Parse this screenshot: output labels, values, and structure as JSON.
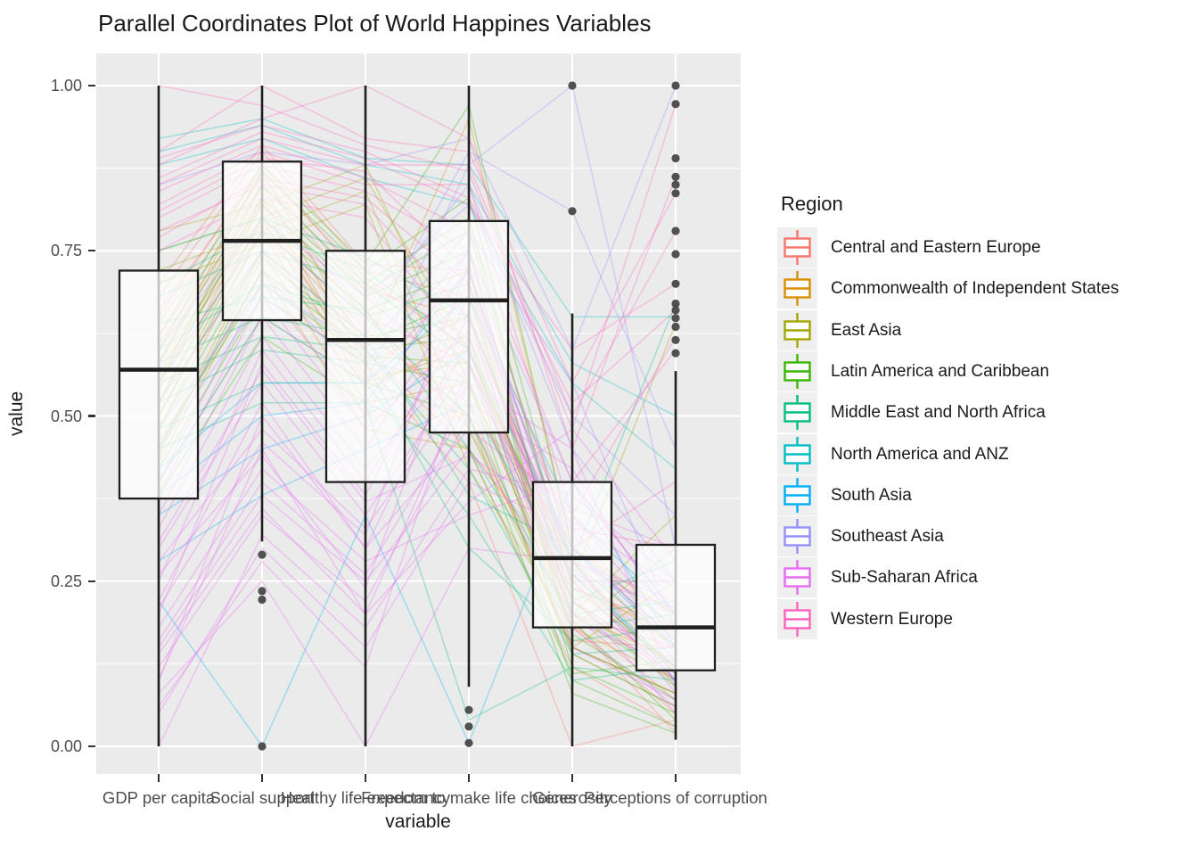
{
  "title": "Parallel Coordinates Plot of World Happines Variables",
  "colors": {
    "panel_bg": "#EBEBEB",
    "grid": "#FFFFFF",
    "box_stroke": "#1f1f1f",
    "box_fill": "rgba(255,255,255,0.72)",
    "outlier": "#3f3f3f",
    "axis_text": "#4D4D4D",
    "legend_key_bg": "#EFEFEF"
  },
  "chart_data": {
    "type": "parallel-coordinates+boxplot",
    "title": "Parallel Coordinates Plot of World Happines Variables",
    "xlabel": "variable",
    "ylabel": "value",
    "ylim": [
      0,
      1
    ],
    "y_ticks": [
      "0.00",
      "0.25",
      "0.50",
      "0.75",
      "1.00"
    ],
    "y_tick_values": [
      0,
      0.25,
      0.5,
      0.75,
      1.0
    ],
    "y_minor_gridlines": [
      0.125,
      0.375,
      0.625,
      0.875
    ],
    "grid": "on",
    "categories": [
      "GDP per capita",
      "Social support",
      "Healthy life expectancy",
      "Freedom to make life choices",
      "Generosity",
      "Perceptions of corruption"
    ],
    "boxplots": [
      {
        "category": "GDP per capita",
        "whisker_low": 0.0,
        "q1": 0.375,
        "median": 0.57,
        "q3": 0.72,
        "whisker_high": 1.0,
        "outliers": []
      },
      {
        "category": "Social support",
        "whisker_low": 0.31,
        "q1": 0.645,
        "median": 0.765,
        "q3": 0.885,
        "whisker_high": 1.0,
        "outliers": [
          0.29,
          0.235,
          0.222,
          0.0
        ]
      },
      {
        "category": "Healthy life expectancy",
        "whisker_low": 0.0,
        "q1": 0.4,
        "median": 0.615,
        "q3": 0.75,
        "whisker_high": 1.0,
        "outliers": []
      },
      {
        "category": "Freedom to make life choices",
        "whisker_low": 0.09,
        "q1": 0.475,
        "median": 0.675,
        "q3": 0.795,
        "whisker_high": 1.0,
        "outliers": [
          0.055,
          0.03,
          0.005
        ]
      },
      {
        "category": "Generosity",
        "whisker_low": 0.0,
        "q1": 0.18,
        "median": 0.285,
        "q3": 0.4,
        "whisker_high": 0.655,
        "outliers": [
          0.81,
          1.0
        ]
      },
      {
        "category": "Perceptions of corruption",
        "whisker_low": 0.01,
        "q1": 0.115,
        "median": 0.18,
        "q3": 0.305,
        "whisker_high": 0.568,
        "outliers": [
          1.0,
          0.972,
          0.89,
          0.862,
          0.85,
          0.837,
          0.78,
          0.745,
          0.7,
          0.67,
          0.66,
          0.648,
          0.635,
          0.615,
          0.595
        ]
      }
    ],
    "legend": {
      "title": "Region",
      "position": "right",
      "entries": [
        {
          "label": "Central and Eastern Europe",
          "color": "#F8766D"
        },
        {
          "label": "Commonwealth of Independent States",
          "color": "#D89000"
        },
        {
          "label": "East Asia",
          "color": "#A3A500"
        },
        {
          "label": "Latin America and Caribbean",
          "color": "#39B600"
        },
        {
          "label": "Middle East and North Africa",
          "color": "#00BF7D"
        },
        {
          "label": "North America and ANZ",
          "color": "#00BFC4"
        },
        {
          "label": "South Asia",
          "color": "#00B0F6"
        },
        {
          "label": "Southeast Asia",
          "color": "#9590FF"
        },
        {
          "label": "Sub-Saharan Africa",
          "color": "#E76BF3"
        },
        {
          "label": "Western Europe",
          "color": "#FF62BC"
        }
      ]
    },
    "series": [
      {
        "name": "Central and Eastern Europe",
        "color": "#F8766D",
        "lines": [
          [
            0.62,
            0.85,
            0.68,
            0.55,
            0.18,
            0.05
          ],
          [
            0.58,
            0.8,
            0.63,
            0.5,
            0.15,
            0.08
          ],
          [
            0.65,
            0.88,
            0.7,
            0.62,
            0.22,
            0.1
          ],
          [
            0.55,
            0.78,
            0.6,
            0.45,
            0.12,
            0.03
          ],
          [
            0.68,
            0.9,
            0.72,
            0.68,
            0.25,
            0.12
          ],
          [
            0.6,
            0.82,
            0.65,
            0.58,
            0.2,
            0.07
          ],
          [
            0.7,
            0.91,
            0.73,
            0.72,
            0.16,
            0.15
          ],
          [
            0.52,
            0.75,
            0.58,
            0.4,
            0.0,
            0.04
          ],
          [
            0.64,
            0.86,
            0.69,
            0.65,
            0.28,
            0.09
          ],
          [
            0.57,
            0.79,
            0.62,
            0.52,
            0.14,
            0.06
          ],
          [
            0.66,
            0.87,
            0.71,
            0.6,
            0.24,
            0.18
          ],
          [
            0.61,
            0.83,
            0.66,
            0.48,
            0.19,
            0.02
          ]
        ]
      },
      {
        "name": "Commonwealth of Independent States",
        "color": "#D89000",
        "lines": [
          [
            0.52,
            0.82,
            0.55,
            0.6,
            0.22,
            0.12
          ],
          [
            0.48,
            0.78,
            0.52,
            0.55,
            0.18,
            0.1
          ],
          [
            0.55,
            0.85,
            0.58,
            0.65,
            0.26,
            0.15
          ],
          [
            0.45,
            0.75,
            0.5,
            0.5,
            0.15,
            0.08
          ],
          [
            0.58,
            0.87,
            0.6,
            0.95,
            0.3,
            0.2
          ],
          [
            0.5,
            0.8,
            0.54,
            0.62,
            0.2,
            0.13
          ],
          [
            0.43,
            0.72,
            0.48,
            0.45,
            0.24,
            0.17
          ],
          [
            0.54,
            0.83,
            0.56,
            0.58,
            0.28,
            0.11
          ]
        ]
      },
      {
        "name": "East Asia",
        "color": "#A3A500",
        "lines": [
          [
            0.78,
            0.82,
            0.88,
            0.55,
            0.2,
            0.35
          ],
          [
            0.72,
            0.78,
            0.84,
            0.48,
            0.15,
            0.25
          ],
          [
            0.75,
            0.8,
            0.86,
            0.6,
            0.25,
            0.64
          ],
          [
            0.7,
            0.76,
            0.82,
            0.42,
            0.18,
            0.3
          ]
        ]
      },
      {
        "name": "Latin America and Caribbean",
        "color": "#39B600",
        "lines": [
          [
            0.5,
            0.78,
            0.65,
            0.7,
            0.15,
            0.08
          ],
          [
            0.45,
            0.72,
            0.6,
            0.62,
            0.12,
            0.05
          ],
          [
            0.55,
            0.82,
            0.68,
            0.75,
            0.2,
            0.1
          ],
          [
            0.42,
            0.68,
            0.58,
            0.55,
            0.1,
            0.03
          ],
          [
            0.58,
            0.85,
            0.7,
            0.8,
            0.24,
            0.12
          ],
          [
            0.48,
            0.75,
            0.62,
            0.65,
            0.17,
            0.07
          ],
          [
            0.6,
            0.87,
            0.72,
            0.83,
            0.28,
            0.15
          ],
          [
            0.4,
            0.65,
            0.55,
            0.5,
            0.08,
            0.02
          ],
          [
            0.52,
            0.8,
            0.66,
            0.72,
            0.22,
            0.09
          ],
          [
            0.46,
            0.7,
            0.59,
            0.58,
            0.14,
            0.06
          ],
          [
            0.62,
            0.88,
            0.73,
            0.97,
            0.3,
            0.18
          ],
          [
            0.44,
            0.74,
            0.61,
            0.68,
            0.19,
            0.04
          ],
          [
            0.56,
            0.83,
            0.69,
            0.78,
            0.26,
            0.11
          ],
          [
            0.38,
            0.62,
            0.52,
            0.45,
            0.11,
            0.13
          ]
        ]
      },
      {
        "name": "Middle East and North Africa",
        "color": "#00BF7D",
        "lines": [
          [
            0.6,
            0.7,
            0.65,
            0.5,
            0.18,
            0.2
          ],
          [
            0.55,
            0.62,
            0.6,
            0.42,
            0.14,
            0.15
          ],
          [
            0.68,
            0.75,
            0.7,
            0.58,
            0.22,
            0.28
          ],
          [
            0.48,
            0.55,
            0.55,
            0.35,
            0.1,
            0.12
          ],
          [
            0.75,
            0.8,
            0.74,
            0.65,
            0.28,
            0.67
          ],
          [
            0.52,
            0.6,
            0.58,
            0.3,
            0.16,
            0.18
          ],
          [
            0.7,
            0.78,
            0.72,
            0.6,
            0.25,
            0.25
          ],
          [
            0.45,
            0.52,
            0.52,
            0.04,
            0.12,
            0.1
          ],
          [
            0.64,
            0.68,
            0.66,
            0.45,
            0.2,
            0.22
          ],
          [
            0.58,
            0.65,
            0.62,
            0.38,
            0.3,
            0.16
          ]
        ]
      },
      {
        "name": "North America and ANZ",
        "color": "#00BFC4",
        "lines": [
          [
            0.9,
            0.94,
            0.88,
            0.85,
            0.58,
            0.5
          ],
          [
            0.88,
            0.92,
            0.86,
            0.82,
            0.55,
            0.42
          ],
          [
            0.92,
            0.95,
            0.89,
            0.88,
            0.65,
            0.65
          ]
        ]
      },
      {
        "name": "South Asia",
        "color": "#00B0F6",
        "lines": [
          [
            0.35,
            0.45,
            0.5,
            0.6,
            0.3,
            0.15
          ],
          [
            0.28,
            0.38,
            0.45,
            0.52,
            0.26,
            0.12
          ],
          [
            0.42,
            0.55,
            0.55,
            0.68,
            0.35,
            0.2
          ],
          [
            0.22,
            0.0,
            0.35,
            0.005,
            0.4,
            0.15
          ],
          [
            0.38,
            0.5,
            0.52,
            0.72,
            0.28,
            0.1
          ]
        ]
      },
      {
        "name": "Southeast Asia",
        "color": "#9590FF",
        "lines": [
          [
            0.55,
            0.78,
            0.65,
            0.85,
            0.45,
            0.25
          ],
          [
            0.48,
            0.7,
            0.6,
            0.78,
            0.55,
            0.18
          ],
          [
            0.85,
            0.9,
            0.88,
            0.92,
            0.6,
            1.0
          ],
          [
            0.4,
            0.65,
            0.55,
            0.88,
            1.0,
            0.3
          ],
          [
            0.52,
            0.75,
            0.62,
            0.9,
            0.81,
            0.45
          ],
          [
            0.6,
            0.8,
            0.68,
            0.82,
            0.5,
            0.35
          ],
          [
            0.45,
            0.68,
            0.58,
            0.75,
            0.4,
            0.2
          ]
        ]
      },
      {
        "name": "Sub-Saharan Africa",
        "color": "#E76BF3",
        "lines": [
          [
            0.1,
            0.45,
            0.2,
            0.55,
            0.3,
            0.13
          ],
          [
            0.15,
            0.38,
            0.25,
            0.45,
            0.25,
            0.1
          ],
          [
            0.22,
            0.52,
            0.3,
            0.62,
            0.28,
            0.08
          ],
          [
            0.05,
            0.3,
            0.15,
            0.4,
            0.33,
            0.15
          ],
          [
            0.3,
            0.55,
            0.35,
            0.58,
            0.22,
            0.12
          ],
          [
            0.18,
            0.42,
            0.28,
            0.35,
            0.4,
            0.2
          ],
          [
            0.25,
            0.6,
            0.4,
            0.65,
            0.18,
            0.06
          ],
          [
            0.12,
            0.35,
            0.22,
            0.5,
            0.35,
            0.17
          ],
          [
            0.35,
            0.65,
            0.45,
            0.7,
            0.25,
            0.1
          ],
          [
            0.08,
            0.25,
            0.0,
            0.3,
            0.28,
            0.22
          ],
          [
            0.28,
            0.48,
            0.33,
            0.55,
            0.45,
            0.09
          ],
          [
            0.2,
            0.58,
            0.38,
            0.68,
            0.32,
            0.14
          ],
          [
            0.4,
            0.7,
            0.5,
            0.75,
            0.2,
            0.11
          ],
          [
            0.0,
            0.32,
            0.18,
            0.42,
            0.38,
            0.25
          ],
          [
            0.33,
            0.62,
            0.42,
            0.6,
            0.15,
            0.07
          ],
          [
            0.16,
            0.4,
            0.26,
            0.52,
            0.42,
            0.18
          ],
          [
            0.45,
            0.72,
            0.55,
            0.72,
            0.27,
            0.13
          ],
          [
            0.1,
            0.5,
            0.3,
            0.48,
            0.36,
            0.3
          ],
          [
            0.26,
            0.44,
            0.24,
            0.66,
            0.23,
            0.05
          ],
          [
            0.38,
            0.68,
            0.48,
            0.63,
            0.3,
            0.16
          ],
          [
            0.06,
            0.28,
            0.12,
            0.58,
            0.26,
            0.21
          ],
          [
            0.31,
            0.57,
            0.37,
            0.44,
            0.34,
            0.24
          ],
          [
            0.21,
            0.46,
            0.32,
            0.73,
            0.19,
            0.12
          ],
          [
            0.14,
            0.36,
            0.2,
            0.37,
            0.48,
            0.28
          ]
        ]
      },
      {
        "name": "Western Europe",
        "color": "#FF62BC",
        "lines": [
          [
            0.88,
            0.95,
            1.0,
            0.92,
            0.45,
            0.862
          ],
          [
            0.85,
            0.92,
            0.88,
            0.88,
            0.5,
            0.78
          ],
          [
            0.82,
            0.9,
            0.85,
            0.85,
            0.35,
            0.62
          ],
          [
            0.9,
            1.0,
            0.92,
            0.9,
            0.55,
            0.837
          ],
          [
            0.8,
            0.88,
            0.84,
            0.75,
            0.3,
            0.4
          ],
          [
            0.78,
            0.85,
            0.82,
            0.65,
            0.25,
            0.25
          ],
          [
            0.86,
            0.93,
            0.89,
            0.82,
            0.6,
            0.7
          ],
          [
            0.75,
            0.83,
            0.8,
            0.6,
            0.2,
            0.15
          ],
          [
            1.0,
            0.97,
            0.91,
            0.87,
            0.48,
            0.972
          ],
          [
            0.84,
            0.91,
            0.86,
            0.78,
            0.4,
            0.6
          ],
          [
            0.77,
            0.86,
            0.83,
            0.7,
            0.33,
            0.3
          ],
          [
            0.89,
            0.94,
            0.9,
            0.83,
            0.52,
            0.66
          ],
          [
            0.81,
            0.89,
            0.87,
            0.72,
            0.28,
            0.2
          ]
        ]
      }
    ]
  }
}
